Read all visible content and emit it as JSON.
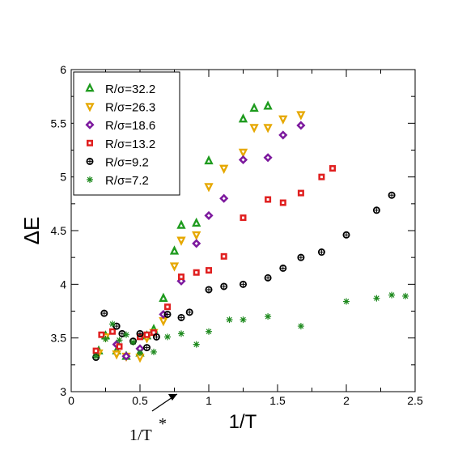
{
  "chart_data": {
    "type": "scatter",
    "title": "",
    "xlabel": "1/T",
    "ylabel": "ΔE",
    "xlim": [
      0,
      2.5
    ],
    "ylim": [
      3,
      6
    ],
    "xticks": [
      0,
      0.5,
      1,
      1.5,
      2,
      2.5
    ],
    "xtick_labels": [
      "0",
      "0.5",
      "1",
      "1.5",
      "2",
      "2.5"
    ],
    "yticks": [
      3,
      3.5,
      4,
      4.5,
      5,
      5.5,
      6
    ],
    "ytick_labels": [
      "3",
      "3.5",
      "4",
      "4.5",
      "5",
      "5.5",
      "6"
    ],
    "grid": false,
    "legend_position": "top-left",
    "annotation": {
      "text": "1/T",
      "superscript": "*",
      "x": 0.77
    },
    "series": [
      {
        "name": "R/σ=32.2",
        "color": "#1e9b1e",
        "marker": "triangle-up",
        "points": [
          [
            0.2,
            3.38
          ],
          [
            0.25,
            3.52
          ],
          [
            0.33,
            3.38
          ],
          [
            0.4,
            3.33
          ],
          [
            0.5,
            3.36
          ],
          [
            0.55,
            3.52
          ],
          [
            0.6,
            3.58
          ],
          [
            0.67,
            3.87
          ],
          [
            0.75,
            4.31
          ],
          [
            0.8,
            4.55
          ],
          [
            0.91,
            4.57
          ],
          [
            1.0,
            5.15
          ],
          [
            1.25,
            5.54
          ],
          [
            1.33,
            5.64
          ],
          [
            1.43,
            5.66
          ]
        ]
      },
      {
        "name": "R/σ=26.3",
        "color": "#e6a800",
        "marker": "triangle-down",
        "points": [
          [
            0.2,
            3.36
          ],
          [
            0.25,
            3.51
          ],
          [
            0.33,
            3.35
          ],
          [
            0.4,
            3.33
          ],
          [
            0.5,
            3.32
          ],
          [
            0.55,
            3.5
          ],
          [
            0.6,
            3.55
          ],
          [
            0.67,
            3.66
          ],
          [
            0.75,
            4.17
          ],
          [
            0.8,
            4.41
          ],
          [
            0.91,
            4.46
          ],
          [
            1.0,
            4.91
          ],
          [
            1.11,
            5.08
          ],
          [
            1.25,
            5.23
          ],
          [
            1.33,
            5.46
          ],
          [
            1.43,
            5.46
          ],
          [
            1.54,
            5.54
          ],
          [
            1.67,
            5.58
          ]
        ]
      },
      {
        "name": "R/σ=18.6",
        "color": "#7d1a9e",
        "marker": "diamond",
        "points": [
          [
            0.33,
            3.44
          ],
          [
            0.4,
            3.33
          ],
          [
            0.5,
            3.4
          ],
          [
            0.67,
            3.72
          ],
          [
            0.8,
            4.03
          ],
          [
            0.91,
            4.38
          ],
          [
            1.0,
            4.64
          ],
          [
            1.11,
            4.8
          ],
          [
            1.25,
            5.16
          ],
          [
            1.43,
            5.18
          ],
          [
            1.54,
            5.39
          ],
          [
            1.67,
            5.48
          ]
        ]
      },
      {
        "name": "R/σ=13.2",
        "color": "#e02020",
        "marker": "square",
        "points": [
          [
            0.18,
            3.38
          ],
          [
            0.22,
            3.53
          ],
          [
            0.3,
            3.56
          ],
          [
            0.35,
            3.42
          ],
          [
            0.5,
            3.51
          ],
          [
            0.55,
            3.53
          ],
          [
            0.6,
            3.55
          ],
          [
            0.7,
            3.79
          ],
          [
            0.8,
            4.07
          ],
          [
            0.91,
            4.11
          ],
          [
            1.0,
            4.13
          ],
          [
            1.11,
            4.26
          ],
          [
            1.25,
            4.62
          ],
          [
            1.43,
            4.79
          ],
          [
            1.54,
            4.76
          ],
          [
            1.67,
            4.85
          ],
          [
            1.82,
            5.0
          ],
          [
            1.9,
            5.08
          ]
        ]
      },
      {
        "name": "R/σ=9.2",
        "color": "#000000",
        "marker": "circle",
        "points": [
          [
            0.18,
            3.32
          ],
          [
            0.24,
            3.73
          ],
          [
            0.33,
            3.61
          ],
          [
            0.37,
            3.54
          ],
          [
            0.45,
            3.47
          ],
          [
            0.5,
            3.54
          ],
          [
            0.55,
            3.41
          ],
          [
            0.62,
            3.51
          ],
          [
            0.7,
            3.72
          ],
          [
            0.8,
            3.69
          ],
          [
            0.86,
            3.74
          ],
          [
            1.0,
            3.95
          ],
          [
            1.11,
            3.98
          ],
          [
            1.25,
            4.0
          ],
          [
            1.43,
            4.06
          ],
          [
            1.54,
            4.15
          ],
          [
            1.67,
            4.25
          ],
          [
            1.82,
            4.3
          ],
          [
            2.0,
            4.46
          ],
          [
            2.22,
            4.69
          ],
          [
            2.33,
            4.83
          ]
        ]
      },
      {
        "name": "R/σ=7.2",
        "color": "#1e8a1e",
        "marker": "star",
        "points": [
          [
            0.18,
            3.33
          ],
          [
            0.25,
            3.49
          ],
          [
            0.3,
            3.63
          ],
          [
            0.35,
            3.48
          ],
          [
            0.4,
            3.53
          ],
          [
            0.45,
            3.46
          ],
          [
            0.5,
            3.36
          ],
          [
            0.6,
            3.37
          ],
          [
            0.7,
            3.51
          ],
          [
            0.8,
            3.54
          ],
          [
            0.91,
            3.44
          ],
          [
            1.0,
            3.56
          ],
          [
            1.15,
            3.67
          ],
          [
            1.25,
            3.67
          ],
          [
            1.43,
            3.7
          ],
          [
            1.67,
            3.61
          ],
          [
            2.0,
            3.84
          ],
          [
            2.22,
            3.87
          ],
          [
            2.33,
            3.9
          ],
          [
            2.43,
            3.89
          ]
        ]
      }
    ]
  }
}
